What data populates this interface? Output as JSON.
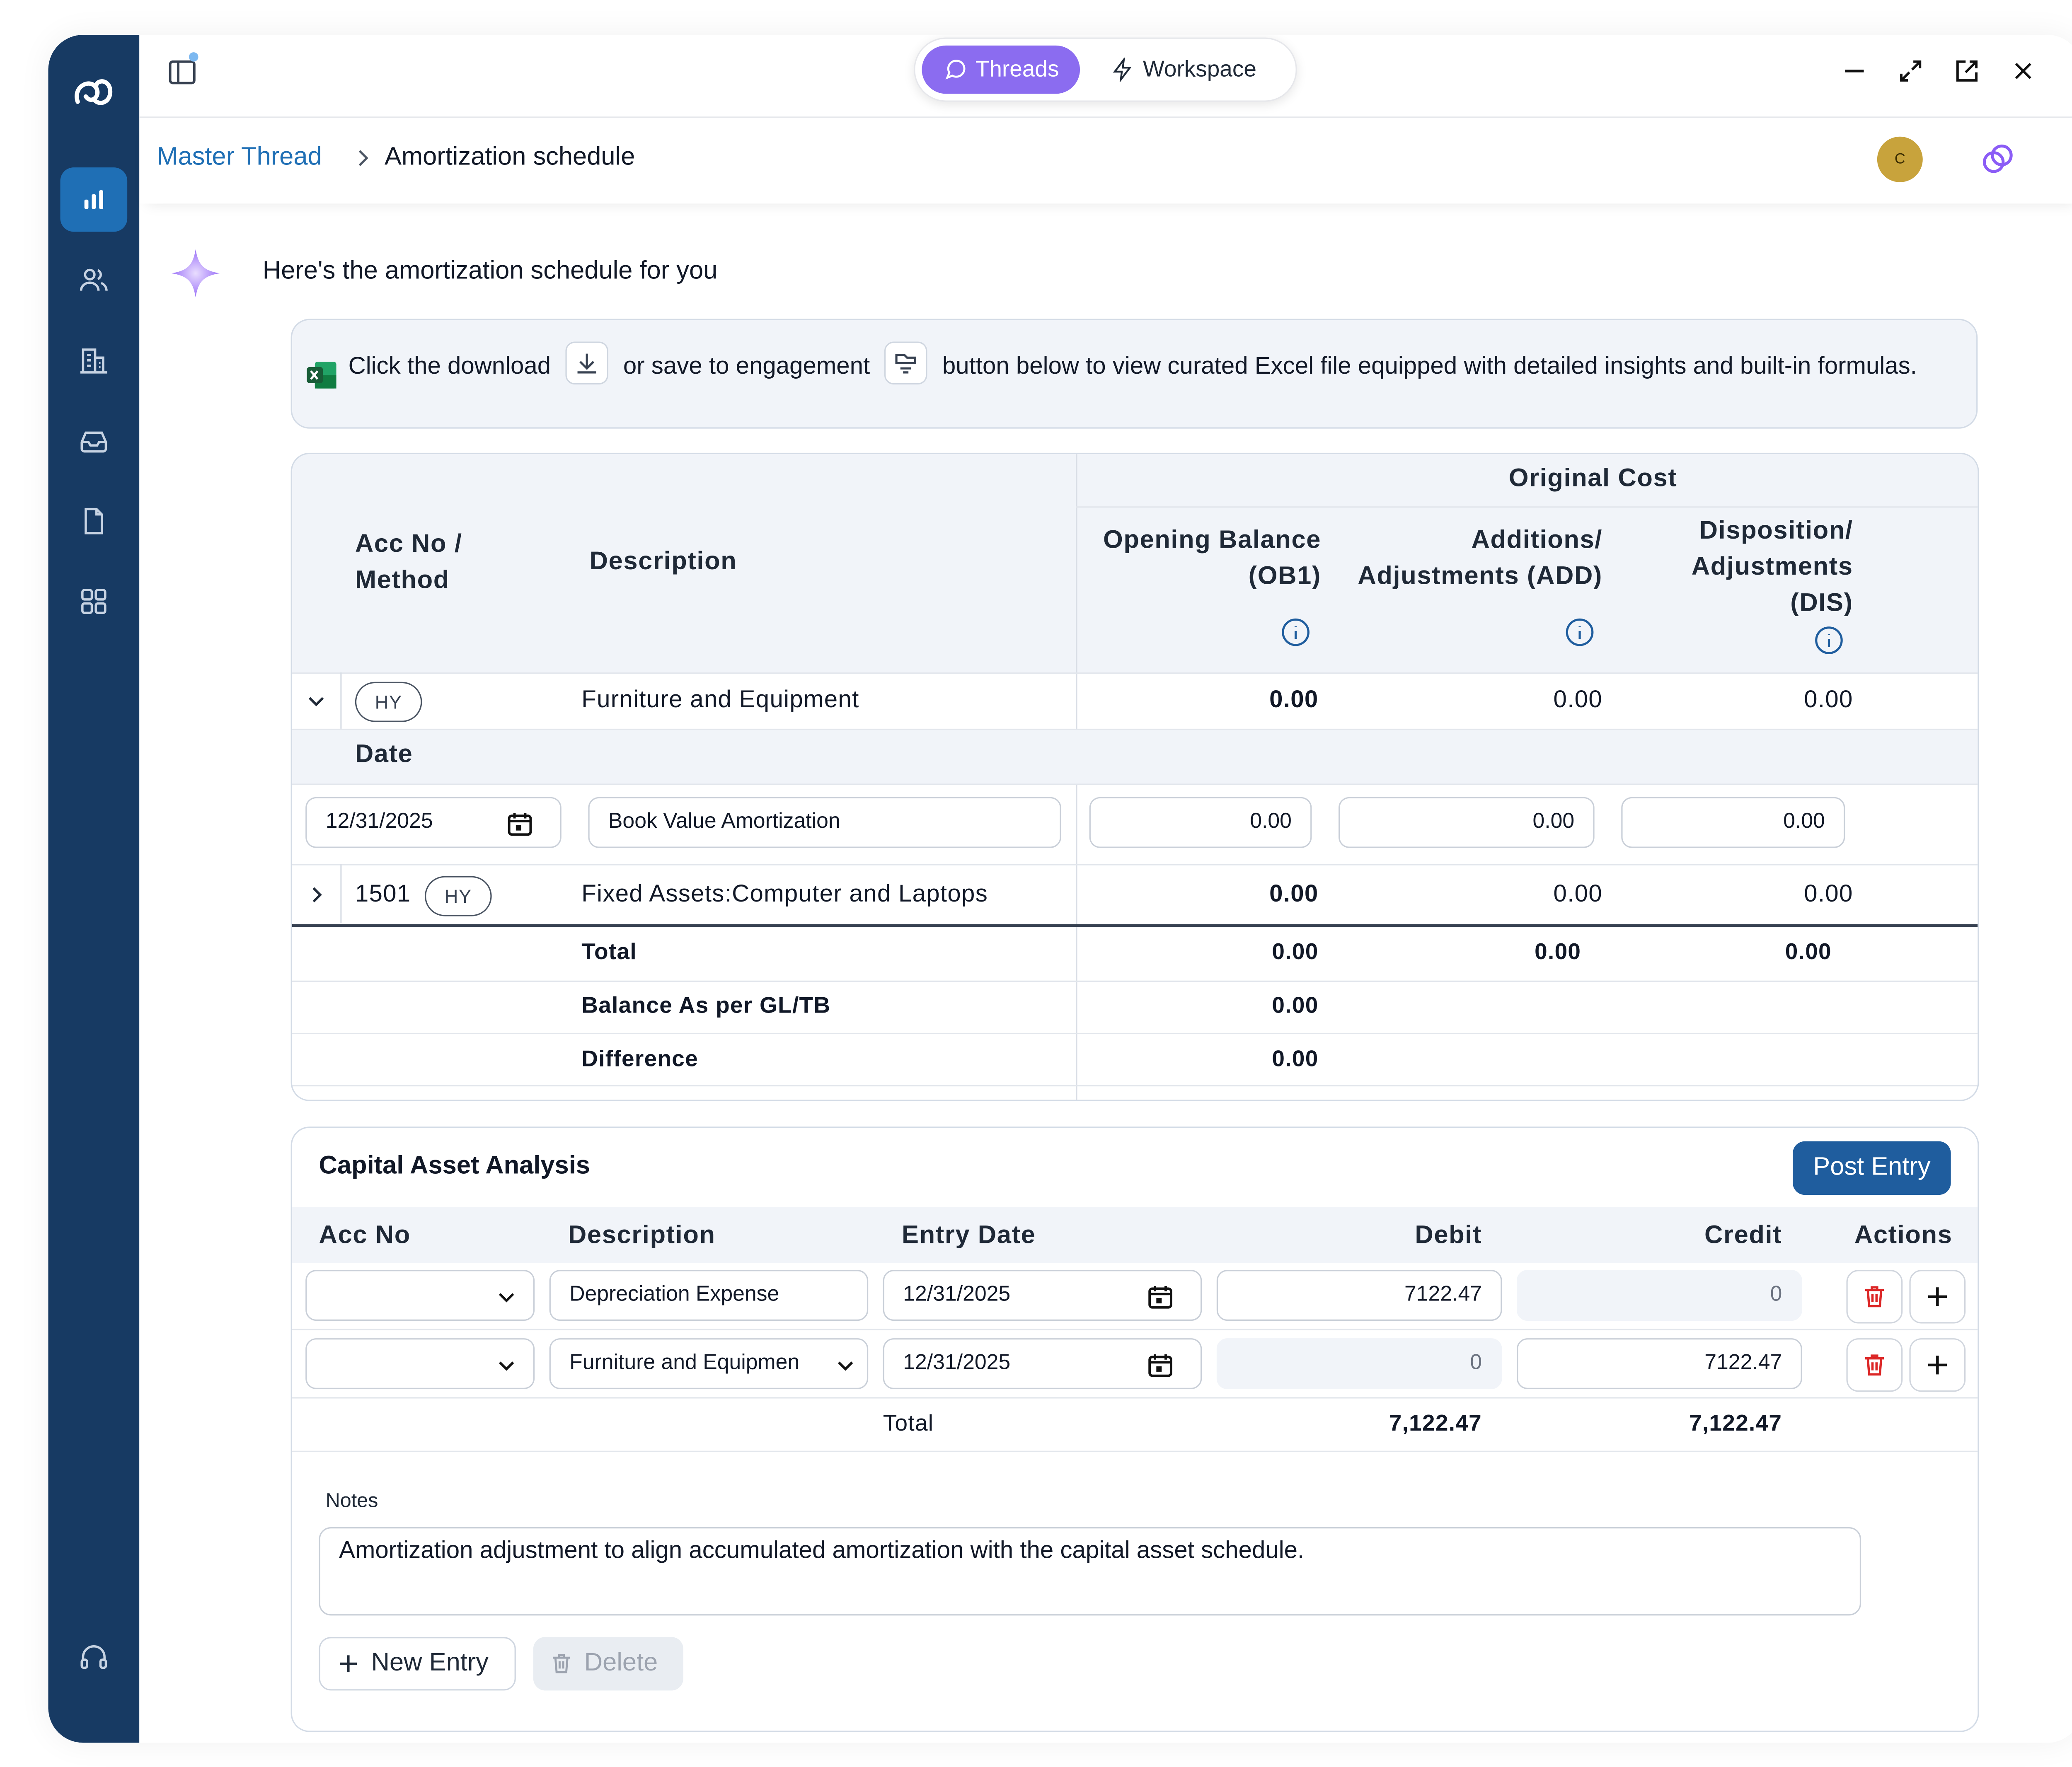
{
  "nav": {
    "threads_label": "Threads",
    "workspace_label": "Workspace",
    "icons": [
      "logo-icon",
      "chart-icon",
      "users-icon",
      "building-icon",
      "inbox-icon",
      "document-icon",
      "grid-icon",
      "headset-icon"
    ]
  },
  "breadcrumb": {
    "parent": "Master Thread",
    "current": "Amortization schedule",
    "avatar_initial": "C"
  },
  "chat": {
    "intro": "Here's the amortization schedule for you",
    "info_part1": "Click the download",
    "info_part2": "or save to engagement",
    "info_part3": "button below to view curated Excel file equipped with detailed insights and built-in formulas."
  },
  "schedule": {
    "group_header": "Original Cost",
    "col_acc": "Acc No / Method",
    "col_desc": "Description",
    "col_ob": "Opening Balance (OB1)",
    "col_add": "Additions/ Adjustments (ADD)",
    "col_dis": "Disposition/ Adjustments (DIS)",
    "row1": {
      "method": "HY",
      "description": "Furniture and Equipment",
      "ob": "0.00",
      "add": "0.00",
      "dis": "0.00"
    },
    "date_header": "Date",
    "entry": {
      "date": "12/31/2025",
      "description": "Book Value Amortization",
      "ob": "0.00",
      "add": "0.00",
      "dis": "0.00"
    },
    "row2": {
      "acc": "1501",
      "method": "HY",
      "description": "Fixed Assets:Computer and Laptops",
      "ob": "0.00",
      "add": "0.00",
      "dis": "0.00"
    },
    "total": {
      "label": "Total",
      "ob": "0.00",
      "add": "0.00",
      "dis": "0.00"
    },
    "gl": {
      "label": "Balance As per GL/TB",
      "ob": "0.00"
    },
    "diff": {
      "label": "Difference",
      "ob": "0.00"
    }
  },
  "analysis": {
    "title": "Capital Asset Analysis",
    "post_button": "Post Entry",
    "columns": {
      "acc": "Acc No",
      "desc": "Description",
      "date": "Entry Date",
      "debit": "Debit",
      "credit": "Credit",
      "actions": "Actions"
    },
    "rows": [
      {
        "acc": "",
        "description": "Depreciation Expense",
        "date": "12/31/2025",
        "debit": "7122.47",
        "credit": "0"
      },
      {
        "acc": "",
        "description": "Furniture and Equipmen",
        "date": "12/31/2025",
        "debit": "0",
        "credit": "7122.47"
      }
    ],
    "total_label": "Total",
    "total_debit": "7,122.47",
    "total_credit": "7,122.47",
    "notes_label": "Notes",
    "notes": "Amortization adjustment to align accumulated amortization with the capital asset schedule.",
    "new_entry": "New Entry",
    "delete": "Delete"
  },
  "colors": {
    "sidebar": "#173a63",
    "accent": "#1f6fb5",
    "threads": "#8b6cf0",
    "post": "#1f5d9e",
    "danger": "#dc2626"
  }
}
